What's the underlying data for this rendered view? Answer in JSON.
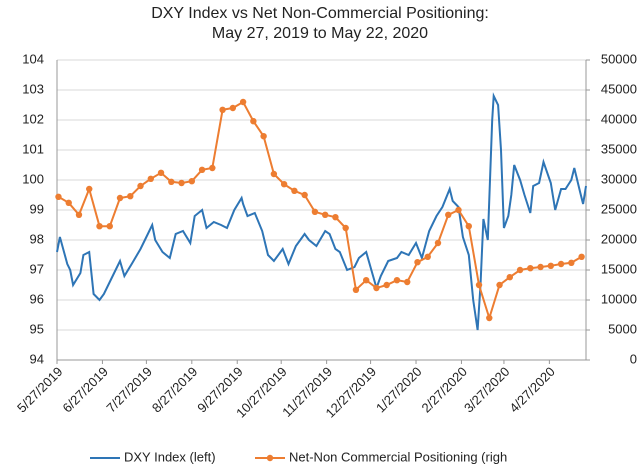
{
  "chart_data": {
    "type": "line",
    "title": "DXY Index vs Net Non-Commercial Positioning:",
    "subtitle": "May 27, 2019 to May 22, 2020",
    "xlim": [
      "5/27/2019",
      "5/22/2020"
    ],
    "xticks": [
      "5/27/2019",
      "6/27/2019",
      "7/27/2019",
      "8/27/2019",
      "9/27/2019",
      "10/27/2019",
      "11/27/2019",
      "12/27/2019",
      "1/27/2020",
      "2/27/2020",
      "3/27/2020",
      "4/27/2020"
    ],
    "ylim": [
      94,
      104
    ],
    "yticks": [
      94,
      95,
      96,
      97,
      98,
      99,
      100,
      101,
      102,
      103,
      104
    ],
    "y2lim": [
      0,
      50000
    ],
    "y2ticks": [
      0,
      5000,
      10000,
      15000,
      20000,
      25000,
      30000,
      35000,
      40000,
      45000,
      50000
    ],
    "grid": true,
    "series": [
      {
        "name": "DXY Index (left)",
        "color": "#2e75b6",
        "markers": false,
        "x": [
          "5/27/2019",
          "5/29/2019",
          "6/3/2019",
          "6/5/2019",
          "6/7/2019",
          "6/12/2019",
          "6/14/2019",
          "6/18/2019",
          "6/21/2019",
          "6/25/2019",
          "6/28/2019",
          "7/3/2019",
          "7/9/2019",
          "7/12/2019",
          "7/17/2019",
          "7/23/2019",
          "7/26/2019",
          "7/31/2019",
          "8/2/2019",
          "8/7/2019",
          "8/12/2019",
          "8/16/2019",
          "8/21/2019",
          "8/26/2019",
          "8/29/2019",
          "9/3/2019",
          "9/6/2019",
          "9/11/2019",
          "9/16/2019",
          "9/20/2019",
          "9/25/2019",
          "9/30/2019",
          "10/1/2019",
          "10/4/2019",
          "10/9/2019",
          "10/14/2019",
          "10/18/2019",
          "10/22/2019",
          "10/28/2019",
          "11/1/2019",
          "11/6/2019",
          "11/12/2019",
          "11/15/2019",
          "11/20/2019",
          "11/26/2019",
          "11/29/2019",
          "12/3/2019",
          "12/6/2019",
          "12/11/2019",
          "12/16/2019",
          "12/19/2019",
          "12/24/2019",
          "12/31/2019",
          "1/3/2020",
          "1/8/2020",
          "1/14/2020",
          "1/17/2020",
          "1/22/2020",
          "1/27/2020",
          "1/31/2020",
          "2/5/2020",
          "2/10/2020",
          "2/14/2020",
          "2/19/2020",
          "2/21/2020",
          "2/25/2020",
          "2/28/2020",
          "3/3/2020",
          "3/6/2020",
          "3/9/2020",
          "3/11/2020",
          "3/13/2020",
          "3/16/2020",
          "3/19/2020",
          "3/20/2020",
          "3/23/2020",
          "3/25/2020",
          "3/27/2020",
          "3/30/2020",
          "4/1/2020",
          "4/3/2020",
          "4/7/2020",
          "4/10/2020",
          "4/14/2020",
          "4/16/2020",
          "4/20/2020",
          "4/23/2020",
          "4/28/2020",
          "5/1/2020",
          "5/5/2020",
          "5/8/2020",
          "5/12/2020",
          "5/14/2020",
          "5/18/2020",
          "5/20/2020",
          "5/22/2020"
        ],
        "values": [
          97.6,
          98.1,
          97.2,
          97.0,
          96.5,
          96.9,
          97.5,
          97.6,
          96.2,
          96.0,
          96.2,
          96.7,
          97.3,
          96.8,
          97.2,
          97.7,
          98.0,
          98.5,
          98.0,
          97.6,
          97.4,
          98.2,
          98.3,
          97.9,
          98.8,
          99.0,
          98.4,
          98.6,
          98.5,
          98.4,
          99.0,
          99.4,
          99.2,
          98.8,
          98.9,
          98.3,
          97.5,
          97.3,
          97.7,
          97.2,
          97.8,
          98.2,
          98.0,
          97.8,
          98.3,
          98.2,
          97.7,
          97.6,
          97.0,
          97.1,
          97.4,
          97.6,
          96.4,
          96.8,
          97.3,
          97.4,
          97.6,
          97.5,
          97.9,
          97.4,
          98.3,
          98.8,
          99.1,
          99.7,
          99.3,
          99.1,
          98.1,
          97.5,
          96.0,
          95.0,
          96.5,
          98.7,
          98.0,
          102.0,
          102.8,
          102.5,
          101.0,
          98.4,
          98.8,
          99.5,
          100.5,
          100.0,
          99.5,
          98.9,
          99.8,
          99.9,
          100.6,
          99.9,
          99.0,
          99.7,
          99.7,
          100.0,
          100.4,
          99.6,
          99.2,
          99.8
        ]
      },
      {
        "name": "Net-Non Commercial Positioning (righ",
        "color": "#ed7d31",
        "axis": "y2",
        "markers": true,
        "x": [
          "5/28/2019",
          "6/4/2019",
          "6/11/2019",
          "6/18/2019",
          "6/25/2019",
          "7/2/2019",
          "7/9/2019",
          "7/16/2019",
          "7/23/2019",
          "7/30/2019",
          "8/6/2019",
          "8/13/2019",
          "8/20/2019",
          "8/27/2019",
          "9/3/2019",
          "9/10/2019",
          "9/17/2019",
          "9/24/2019",
          "10/1/2019",
          "10/8/2019",
          "10/15/2019",
          "10/22/2019",
          "10/29/2019",
          "11/5/2019",
          "11/12/2019",
          "11/19/2019",
          "11/26/2019",
          "12/3/2019",
          "12/10/2019",
          "12/17/2019",
          "12/24/2019",
          "12/31/2019",
          "1/7/2020",
          "1/14/2020",
          "1/21/2020",
          "1/28/2020",
          "2/4/2020",
          "2/11/2020",
          "2/18/2020",
          "2/25/2020",
          "3/3/2020",
          "3/10/2020",
          "3/17/2020",
          "3/24/2020",
          "3/31/2020",
          "4/7/2020",
          "4/14/2020",
          "4/21/2020",
          "4/28/2020",
          "5/5/2020",
          "5/12/2020",
          "5/19/2020"
        ],
        "values": [
          27200,
          26200,
          24200,
          28500,
          22300,
          22300,
          27000,
          27300,
          29000,
          30200,
          31200,
          29700,
          29500,
          29800,
          31700,
          32000,
          41700,
          42000,
          43000,
          39800,
          37300,
          31000,
          29300,
          28200,
          27500,
          24700,
          24200,
          23800,
          22000,
          11700,
          13300,
          12000,
          12500,
          13300,
          13000,
          16300,
          17200,
          19500,
          24200,
          25000,
          22300,
          12500,
          7000,
          12500,
          13800,
          15000,
          15300,
          15500,
          15700,
          16000,
          16200,
          17200
        ]
      }
    ]
  }
}
